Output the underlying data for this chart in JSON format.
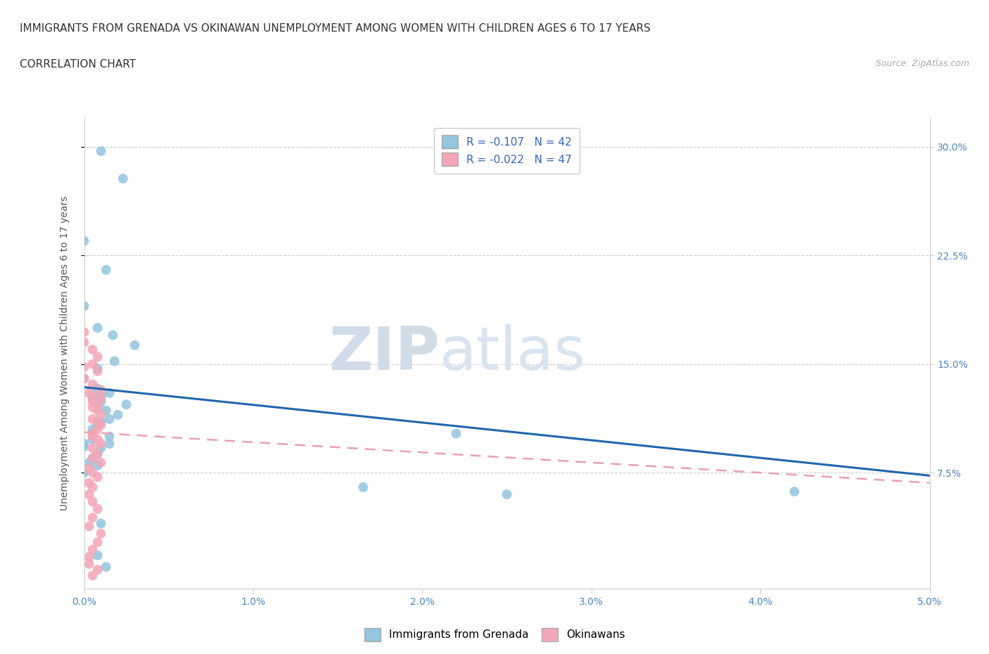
{
  "title_line1": "IMMIGRANTS FROM GRENADA VS OKINAWAN UNEMPLOYMENT AMONG WOMEN WITH CHILDREN AGES 6 TO 17 YEARS",
  "title_line2": "CORRELATION CHART",
  "source_text": "Source: ZipAtlas.com",
  "ylabel": "Unemployment Among Women with Children Ages 6 to 17 years",
  "xlim": [
    0.0,
    0.05
  ],
  "ylim": [
    -0.005,
    0.32
  ],
  "xtick_vals": [
    0.0,
    0.01,
    0.02,
    0.03,
    0.04,
    0.05
  ],
  "xtick_labels": [
    "0.0%",
    "1.0%",
    "2.0%",
    "3.0%",
    "4.0%",
    "5.0%"
  ],
  "ytick_vals": [
    0.075,
    0.15,
    0.225,
    0.3
  ],
  "ytick_labels": [
    "7.5%",
    "15.0%",
    "22.5%",
    "30.0%"
  ],
  "legend_label1": "Immigrants from Grenada",
  "legend_label2": "Okinawans",
  "watermark_zip": "ZIP",
  "watermark_atlas": "atlas",
  "blue_color": "#92c5de",
  "pink_color": "#f4a6b8",
  "blue_line_color": "#2166ac",
  "pink_line_color": "#e8a0b0",
  "r1": -0.107,
  "n1": 42,
  "r2": -0.022,
  "n2": 47,
  "blue_line_x0": 0.0,
  "blue_line_y0": 0.134,
  "blue_line_x1": 0.05,
  "blue_line_y1": 0.073,
  "pink_line_x0": 0.0,
  "pink_line_y0": 0.103,
  "pink_line_x1": 0.05,
  "pink_line_y1": 0.068,
  "blue_scatter_x": [
    0.001,
    0.0023,
    0.0,
    0.0013,
    0.0,
    0.0008,
    0.0017,
    0.003,
    0.0018,
    0.0008,
    0.0,
    0.0008,
    0.0015,
    0.001,
    0.0005,
    0.001,
    0.0025,
    0.0008,
    0.0013,
    0.002,
    0.0015,
    0.001,
    0.0008,
    0.0005,
    0.0015,
    0.0005,
    0.0,
    0.001,
    0.0008,
    0.0005,
    0.0003,
    0.0008,
    0.0,
    0.0015,
    0.0,
    0.022,
    0.0165,
    0.042,
    0.025,
    0.001,
    0.0008,
    0.0013
  ],
  "blue_scatter_y": [
    0.297,
    0.278,
    0.235,
    0.215,
    0.19,
    0.175,
    0.17,
    0.163,
    0.152,
    0.147,
    0.14,
    0.133,
    0.13,
    0.128,
    0.126,
    0.124,
    0.122,
    0.12,
    0.118,
    0.115,
    0.112,
    0.11,
    0.108,
    0.105,
    0.1,
    0.098,
    0.095,
    0.092,
    0.088,
    0.085,
    0.082,
    0.08,
    0.075,
    0.095,
    0.093,
    0.102,
    0.065,
    0.062,
    0.06,
    0.04,
    0.018,
    0.01
  ],
  "pink_scatter_x": [
    0.0,
    0.0,
    0.0005,
    0.0008,
    0.0005,
    0.0,
    0.0008,
    0.0,
    0.0005,
    0.001,
    0.0003,
    0.0005,
    0.001,
    0.0005,
    0.0008,
    0.0005,
    0.0008,
    0.001,
    0.0005,
    0.0008,
    0.001,
    0.0008,
    0.0005,
    0.0005,
    0.0008,
    0.001,
    0.0005,
    0.0008,
    0.0005,
    0.001,
    0.0003,
    0.0005,
    0.0008,
    0.0003,
    0.0005,
    0.0003,
    0.0005,
    0.0008,
    0.0005,
    0.0003,
    0.001,
    0.0008,
    0.0005,
    0.0003,
    0.0003,
    0.0008,
    0.0005
  ],
  "pink_scatter_y": [
    0.172,
    0.165,
    0.16,
    0.155,
    0.15,
    0.148,
    0.145,
    0.14,
    0.136,
    0.132,
    0.13,
    0.128,
    0.126,
    0.124,
    0.122,
    0.12,
    0.118,
    0.115,
    0.112,
    0.11,
    0.108,
    0.105,
    0.102,
    0.1,
    0.098,
    0.095,
    0.092,
    0.088,
    0.085,
    0.082,
    0.078,
    0.075,
    0.072,
    0.068,
    0.065,
    0.06,
    0.055,
    0.05,
    0.044,
    0.038,
    0.033,
    0.027,
    0.022,
    0.017,
    0.012,
    0.008,
    0.004
  ],
  "background_color": "#ffffff",
  "grid_color": "#cccccc",
  "title_fontsize": 11,
  "axis_label_fontsize": 10,
  "tick_fontsize": 10,
  "tick_color": "#4a86c8",
  "legend_fontsize": 11
}
